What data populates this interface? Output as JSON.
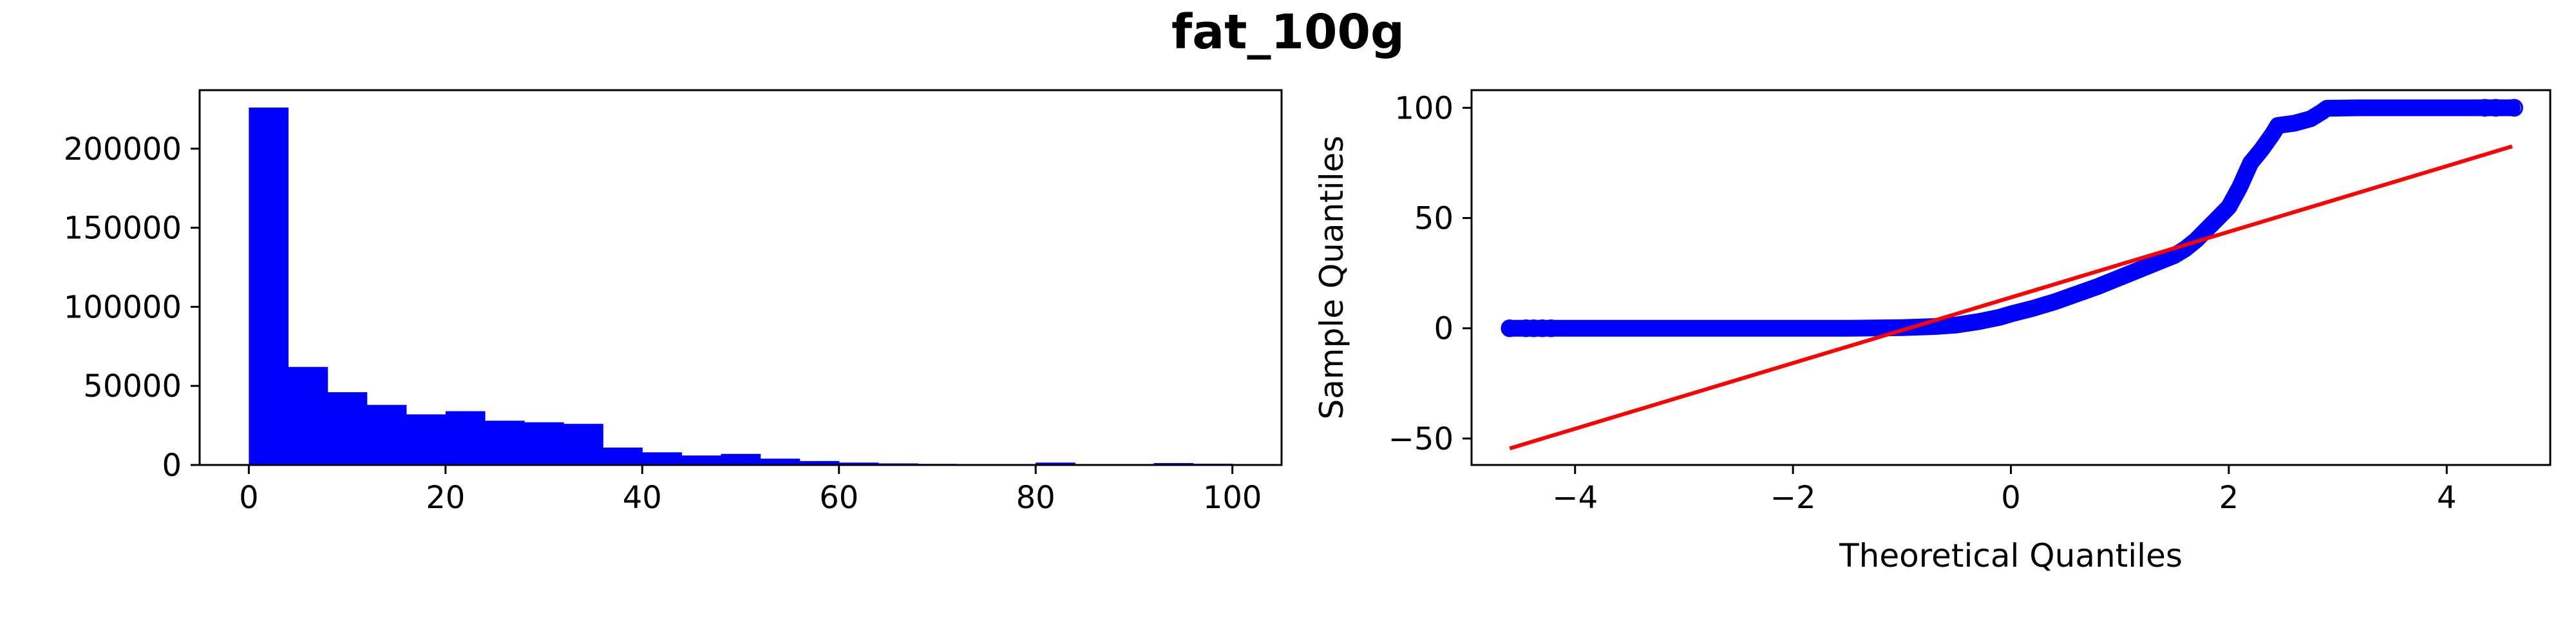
{
  "figure": {
    "suptitle": "fat_100g"
  },
  "chart_data": [
    {
      "type": "bar",
      "subtype": "histogram",
      "title": "",
      "xlabel": "",
      "ylabel": "",
      "bar_color": "#0000ff",
      "xlim": [
        -5,
        105
      ],
      "ylim": [
        0,
        237000
      ],
      "bin_width": 4,
      "bins": [
        {
          "x0": 0,
          "x1": 4,
          "count": 226000
        },
        {
          "x0": 4,
          "x1": 8,
          "count": 62000
        },
        {
          "x0": 8,
          "x1": 12,
          "count": 46000
        },
        {
          "x0": 12,
          "x1": 16,
          "count": 38000
        },
        {
          "x0": 16,
          "x1": 20,
          "count": 32000
        },
        {
          "x0": 20,
          "x1": 24,
          "count": 34000
        },
        {
          "x0": 24,
          "x1": 28,
          "count": 28000
        },
        {
          "x0": 28,
          "x1": 32,
          "count": 27000
        },
        {
          "x0": 32,
          "x1": 36,
          "count": 26000
        },
        {
          "x0": 36,
          "x1": 40,
          "count": 11000
        },
        {
          "x0": 40,
          "x1": 44,
          "count": 8000
        },
        {
          "x0": 44,
          "x1": 48,
          "count": 6000
        },
        {
          "x0": 48,
          "x1": 52,
          "count": 7000
        },
        {
          "x0": 52,
          "x1": 56,
          "count": 4000
        },
        {
          "x0": 56,
          "x1": 60,
          "count": 2500
        },
        {
          "x0": 60,
          "x1": 64,
          "count": 1500
        },
        {
          "x0": 64,
          "x1": 68,
          "count": 1000
        },
        {
          "x0": 68,
          "x1": 72,
          "count": 700
        },
        {
          "x0": 72,
          "x1": 76,
          "count": 500
        },
        {
          "x0": 76,
          "x1": 80,
          "count": 400
        },
        {
          "x0": 80,
          "x1": 84,
          "count": 1500
        },
        {
          "x0": 84,
          "x1": 88,
          "count": 400
        },
        {
          "x0": 88,
          "x1": 92,
          "count": 400
        },
        {
          "x0": 92,
          "x1": 96,
          "count": 1200
        },
        {
          "x0": 96,
          "x1": 100,
          "count": 800
        }
      ],
      "xticks": [
        0,
        20,
        40,
        60,
        80,
        100
      ],
      "xtick_labels": [
        "0",
        "20",
        "40",
        "60",
        "80",
        "100"
      ],
      "yticks": [
        0,
        50000,
        100000,
        150000,
        200000
      ],
      "ytick_labels": [
        "0",
        "50000",
        "100000",
        "150000",
        "200000"
      ],
      "grid": false
    },
    {
      "type": "scatter",
      "subtype": "qq-plot",
      "title": "",
      "xlabel": "Theoretical Quantiles",
      "ylabel": "Sample Quantiles",
      "marker_color": "#0000ff",
      "line_color": "#ff0000",
      "xlim": [
        -4.95,
        4.95
      ],
      "ylim": [
        -62,
        108
      ],
      "xticks": [
        -4,
        -2,
        0,
        2,
        4
      ],
      "xtick_labels": [
        "−4",
        "−2",
        "0",
        "2",
        "4"
      ],
      "yticks": [
        -50,
        0,
        50,
        100
      ],
      "ytick_labels": [
        "−50",
        "0",
        "50",
        "100"
      ],
      "grid": false,
      "sample_curve": [
        [
          -4.6,
          0
        ],
        [
          -4.4,
          0
        ],
        [
          -4.0,
          0
        ],
        [
          -3.0,
          0
        ],
        [
          -2.0,
          0
        ],
        [
          -1.5,
          0
        ],
        [
          -1.0,
          0.3
        ],
        [
          -0.7,
          0.8
        ],
        [
          -0.5,
          1.5
        ],
        [
          -0.3,
          3
        ],
        [
          -0.1,
          5
        ],
        [
          0.0,
          6.5
        ],
        [
          0.2,
          9
        ],
        [
          0.4,
          12
        ],
        [
          0.6,
          15.5
        ],
        [
          0.8,
          19
        ],
        [
          1.0,
          23
        ],
        [
          1.2,
          27
        ],
        [
          1.4,
          31
        ],
        [
          1.5,
          33
        ],
        [
          1.6,
          36
        ],
        [
          1.7,
          40
        ],
        [
          1.8,
          45
        ],
        [
          1.9,
          50
        ],
        [
          2.0,
          55
        ],
        [
          2.1,
          64
        ],
        [
          2.2,
          75
        ],
        [
          2.3,
          81
        ],
        [
          2.4,
          88
        ],
        [
          2.45,
          92
        ],
        [
          2.6,
          93
        ],
        [
          2.75,
          95
        ],
        [
          2.85,
          98
        ],
        [
          2.9,
          99.8
        ],
        [
          3.2,
          100
        ],
        [
          4.0,
          100
        ],
        [
          4.6,
          100
        ]
      ],
      "isolated_points": [
        {
          "x": -4.6,
          "y": 0
        },
        {
          "x": -4.45,
          "y": 0
        },
        {
          "x": -4.38,
          "y": 0
        },
        {
          "x": -4.3,
          "y": 0
        },
        {
          "x": -4.22,
          "y": 0
        },
        {
          "x": 4.35,
          "y": 100
        },
        {
          "x": 4.45,
          "y": 100
        },
        {
          "x": 4.62,
          "y": 100
        }
      ],
      "reference_line": [
        [
          -4.6,
          -54.5
        ],
        [
          4.6,
          82.5
        ]
      ]
    }
  ]
}
